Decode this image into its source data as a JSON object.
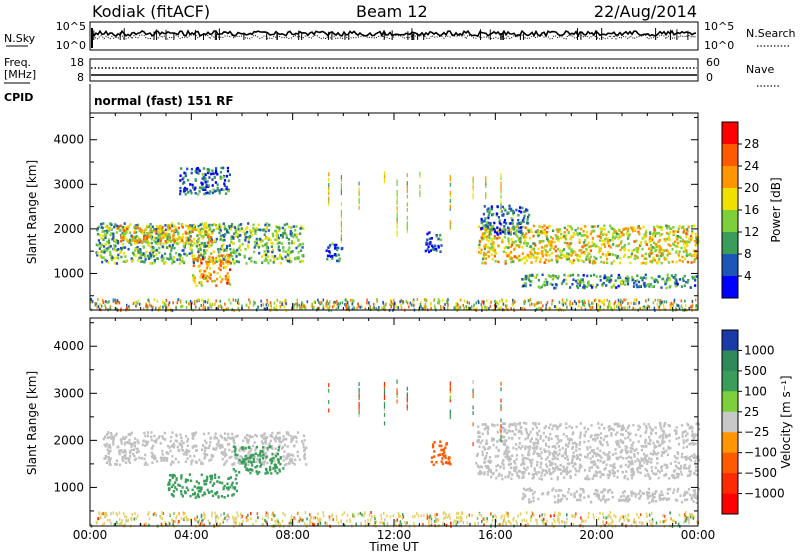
{
  "header": {
    "station": "Kodiak (fitACF)",
    "beam": "Beam 12",
    "date": "22/Aug/2014"
  },
  "noise_panel": {
    "left_label": "N.Sky",
    "right_label": "N.Search",
    "tick_top": "10^5",
    "tick_bottom": "10^0"
  },
  "freq_panel": {
    "left_label": "Freq.",
    "left_unit": "[MHz]",
    "right_label": "Nave",
    "left_ticks": [
      "18",
      "8"
    ],
    "right_ticks": [
      "60",
      "0"
    ]
  },
  "cpid": {
    "label": "CPID",
    "text": "normal (fast) 151 RF"
  },
  "power_panel": {
    "ylabel": "Slant Range [km]",
    "yticks": [
      "4000",
      "3000",
      "2000",
      "1000"
    ],
    "colorbar_label": "Power [dB]",
    "colorbar_ticks": [
      "28",
      "24",
      "20",
      "16",
      "12",
      "8",
      "4"
    ],
    "colorbar_colors": [
      "#ff0000",
      "#ff5a00",
      "#ff9600",
      "#f0e000",
      "#7ed03a",
      "#3a9e5a",
      "#1e56b8",
      "#0000ff"
    ]
  },
  "velocity_panel": {
    "ylabel": "Slant Range [km]",
    "yticks": [
      "4000",
      "3000",
      "2000",
      "1000"
    ],
    "colorbar_label": "Velocity [m s⁻¹]",
    "colorbar_ticks": [
      "1000",
      "500",
      "100",
      "25",
      "−25",
      "−100",
      "−500",
      "−1000"
    ],
    "colorbar_colors": [
      "#1a3aa8",
      "#2f8a5a",
      "#3a9e5a",
      "#7ed03a",
      "#c8c8c8",
      "#ff9600",
      "#ff5a00",
      "#ff2a00",
      "#ff0000"
    ],
    "ground_scatter_color": "#c0c0c0"
  },
  "time_axis": {
    "xlabel": "Time UT",
    "ticks": [
      "00:00",
      "04:00",
      "08:00",
      "12:00",
      "16:00",
      "20:00",
      "00:00"
    ]
  },
  "chart_data": {
    "type": "heatmap",
    "x_unit": "hours UT",
    "y_unit": "km",
    "xlim": [
      0,
      24
    ],
    "ylim": [
      180,
      4600
    ],
    "power_regions": [
      {
        "t0": 0.2,
        "t1": 8.4,
        "r0": 1250,
        "r1": 2150,
        "level": 12
      },
      {
        "t0": 1.0,
        "t1": 4.8,
        "r0": 1700,
        "r1": 2100,
        "level": 20
      },
      {
        "t0": 4.0,
        "t1": 5.5,
        "r0": 750,
        "r1": 1450,
        "level": 22
      },
      {
        "t0": 3.5,
        "t1": 5.5,
        "r0": 2800,
        "r1": 3400,
        "level": 6
      },
      {
        "t0": 9.3,
        "t1": 10.0,
        "r0": 1300,
        "r1": 1700,
        "level": 6
      },
      {
        "t0": 13.2,
        "t1": 13.9,
        "r0": 1500,
        "r1": 1950,
        "level": 6
      },
      {
        "t0": 15.3,
        "t1": 24.0,
        "r0": 1250,
        "r1": 2100,
        "level": 18
      },
      {
        "t0": 17.0,
        "t1": 24.0,
        "r0": 700,
        "r1": 1000,
        "level": 10
      },
      {
        "t0": 15.4,
        "t1": 17.3,
        "r0": 1900,
        "r1": 2550,
        "level": 8
      }
    ],
    "velocity_regions": [
      {
        "t0": 0.5,
        "t1": 8.5,
        "r0": 1500,
        "r1": 2200,
        "value": 0
      },
      {
        "t0": 3.0,
        "t1": 5.8,
        "r0": 800,
        "r1": 1300,
        "value": 200
      },
      {
        "t0": 5.6,
        "t1": 7.6,
        "r0": 1300,
        "r1": 1900,
        "value": 200
      },
      {
        "t0": 13.4,
        "t1": 14.2,
        "r0": 1500,
        "r1": 2000,
        "value": -200
      },
      {
        "t0": 15.2,
        "t1": 24.0,
        "r0": 1200,
        "r1": 2400,
        "value": 0
      },
      {
        "t0": 17.0,
        "t1": 24.0,
        "r0": 700,
        "r1": 1000,
        "value": 0
      }
    ]
  }
}
